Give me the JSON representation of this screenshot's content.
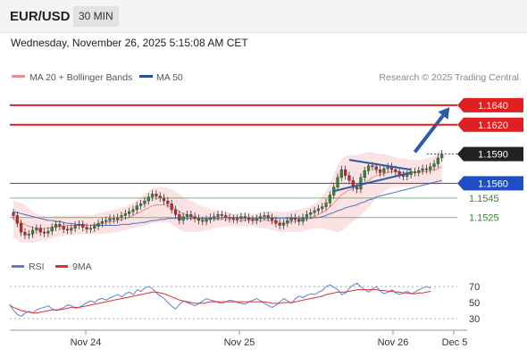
{
  "header": {
    "pair": "EUR/USD",
    "timeframe": "30 MIN",
    "datetime": "Wednesday, November 26, 2025 5:15:08 AM CET"
  },
  "legend": {
    "ma20": "MA 20 + Bollinger Bands",
    "ma50": "MA 50",
    "copyright": "Research © 2025 Trading Central"
  },
  "colors": {
    "resistance": "#e02020",
    "support": "#1e4fc4",
    "support_minor": "#2e8b2e",
    "price": "#222222",
    "bollinger": "#fbe3e3",
    "ma20": "#f08a8a",
    "ma50": "#4a6fd0",
    "arrow": "#2b5ca8",
    "candle_up": "#2e8b2e",
    "candle_down": "#d42020",
    "rsi": "#5b7fd6",
    "rsi_ma": "#e03030"
  },
  "chart_data": [
    {
      "type": "candlestick",
      "x_ticks": [
        "Nov 24",
        "Nov 25",
        "Nov 26",
        "Dec 5"
      ],
      "ylim": [
        1.149,
        1.166
      ],
      "levels": [
        {
          "value": 1.164,
          "label": "1.1640",
          "kind": "resistance"
        },
        {
          "value": 1.162,
          "label": "1.1620",
          "kind": "resistance"
        },
        {
          "value": 1.159,
          "label": "1.1590",
          "kind": "price"
        },
        {
          "value": 1.156,
          "label": "1.1560",
          "kind": "support"
        },
        {
          "value": 1.1545,
          "label": "1.1545",
          "kind": "support_minor"
        },
        {
          "value": 1.1525,
          "label": "1.1525",
          "kind": "support_minor"
        }
      ],
      "close": [
        1.1527,
        1.1519,
        1.151,
        1.1507,
        1.1508,
        1.1512,
        1.1514,
        1.151,
        1.1509,
        1.1511,
        1.1515,
        1.1518,
        1.1516,
        1.1513,
        1.1512,
        1.1514,
        1.1517,
        1.1518,
        1.1515,
        1.1513,
        1.1514,
        1.1516,
        1.1519,
        1.1521,
        1.1522,
        1.1524,
        1.1523,
        1.1525,
        1.1527,
        1.1529,
        1.1531,
        1.1533,
        1.1537,
        1.1539,
        1.1542,
        1.1546,
        1.1549,
        1.1547,
        1.1545,
        1.1542,
        1.1539,
        1.1533,
        1.1528,
        1.1522,
        1.1526,
        1.1528,
        1.1526,
        1.1524,
        1.1522,
        1.1521,
        1.1523,
        1.1525,
        1.1526,
        1.1528,
        1.1527,
        1.1525,
        1.1524,
        1.1523,
        1.1524,
        1.1526,
        1.1525,
        1.1523,
        1.1522,
        1.1524,
        1.1526,
        1.1527,
        1.1525,
        1.1522,
        1.1519,
        1.1517,
        1.1519,
        1.1522,
        1.1525,
        1.1523,
        1.1521,
        1.1525,
        1.1528,
        1.153,
        1.1532,
        1.1534,
        1.1536,
        1.154,
        1.1548,
        1.1556,
        1.1566,
        1.1574,
        1.1568,
        1.1563,
        1.1556,
        1.1554,
        1.1566,
        1.1573,
        1.1578,
        1.1577,
        1.1574,
        1.1571,
        1.1575,
        1.1577,
        1.1574,
        1.1572,
        1.1569,
        1.1567,
        1.1569,
        1.1572,
        1.1571,
        1.1573,
        1.1575,
        1.1574,
        1.1577,
        1.158,
        1.1586,
        1.159
      ],
      "bollinger_upper": [
        1.1542,
        1.1541,
        1.154,
        1.1538,
        1.1534,
        1.1531,
        1.1529,
        1.1528,
        1.1527,
        1.1526,
        1.1526,
        1.1527,
        1.1527,
        1.1527,
        1.1527,
        1.1527,
        1.1527,
        1.1527,
        1.1527,
        1.1527,
        1.1527,
        1.1528,
        1.1529,
        1.153,
        1.1531,
        1.1532,
        1.1533,
        1.1534,
        1.1535,
        1.1536,
        1.1538,
        1.154,
        1.1543,
        1.1546,
        1.1549,
        1.1552,
        1.1555,
        1.1556,
        1.1556,
        1.1556,
        1.1555,
        1.1554,
        1.1552,
        1.1549,
        1.1546,
        1.1544,
        1.1542,
        1.154,
        1.1538,
        1.1536,
        1.1535,
        1.1534,
        1.1533,
        1.1532,
        1.1531,
        1.153,
        1.153,
        1.1529,
        1.1529,
        1.1529,
        1.1529,
        1.1529,
        1.1529,
        1.1529,
        1.153,
        1.1531,
        1.1531,
        1.1531,
        1.1531,
        1.1531,
        1.1531,
        1.1531,
        1.1532,
        1.1533,
        1.1533,
        1.1534,
        1.1535,
        1.1537,
        1.1539,
        1.1542,
        1.1546,
        1.1552,
        1.156,
        1.1569,
        1.1579,
        1.1585,
        1.1588,
        1.1589,
        1.1589,
        1.1589,
        1.159,
        1.1591,
        1.1592,
        1.1592,
        1.1591,
        1.159,
        1.159,
        1.1589,
        1.1588,
        1.1587,
        1.1586,
        1.1585,
        1.1585,
        1.1584,
        1.1584,
        1.1584,
        1.1585,
        1.1586,
        1.1587,
        1.1589,
        1.1592,
        1.1596
      ],
      "bollinger_lower": [
        1.1504,
        1.1502,
        1.15,
        1.1499,
        1.1499,
        1.1499,
        1.15,
        1.1501,
        1.1502,
        1.1503,
        1.1504,
        1.1505,
        1.1506,
        1.1506,
        1.1507,
        1.1507,
        1.1507,
        1.1508,
        1.1508,
        1.1508,
        1.1508,
        1.1508,
        1.1508,
        1.1508,
        1.1509,
        1.1509,
        1.151,
        1.151,
        1.1511,
        1.1512,
        1.1513,
        1.1514,
        1.1515,
        1.1516,
        1.1517,
        1.1518,
        1.1519,
        1.152,
        1.152,
        1.152,
        1.152,
        1.1518,
        1.1515,
        1.1512,
        1.1511,
        1.151,
        1.151,
        1.151,
        1.151,
        1.1511,
        1.1512,
        1.1513,
        1.1514,
        1.1515,
        1.1515,
        1.1516,
        1.1516,
        1.1516,
        1.1516,
        1.1516,
        1.1516,
        1.1516,
        1.1516,
        1.1515,
        1.1514,
        1.1514,
        1.1513,
        1.1512,
        1.1511,
        1.151,
        1.151,
        1.151,
        1.151,
        1.151,
        1.151,
        1.1511,
        1.1512,
        1.1513,
        1.1514,
        1.1514,
        1.1514,
        1.1513,
        1.1512,
        1.1511,
        1.151,
        1.1511,
        1.1514,
        1.1518,
        1.1521,
        1.1524,
        1.1527,
        1.1531,
        1.1535,
        1.154,
        1.1544,
        1.1548,
        1.1551,
        1.1554,
        1.1556,
        1.1557,
        1.1557,
        1.1557,
        1.1557,
        1.1557,
        1.1557,
        1.1558,
        1.1558,
        1.1558,
        1.1559,
        1.1559,
        1.1559,
        1.156
      ],
      "ma20": [
        1.1523,
        1.1521,
        1.152,
        1.1518,
        1.1516,
        1.1515,
        1.1514,
        1.1514,
        1.1514,
        1.1514,
        1.1515,
        1.1516,
        1.1516,
        1.1516,
        1.1517,
        1.1517,
        1.1517,
        1.1517,
        1.1517,
        1.1517,
        1.1517,
        1.1518,
        1.1518,
        1.1519,
        1.152,
        1.1521,
        1.1521,
        1.1522,
        1.1523,
        1.1524,
        1.1525,
        1.1527,
        1.1529,
        1.1531,
        1.1533,
        1.1535,
        1.1537,
        1.1538,
        1.1538,
        1.1538,
        1.1537,
        1.1536,
        1.1534,
        1.1531,
        1.1529,
        1.1527,
        1.1526,
        1.1525,
        1.1524,
        1.1523,
        1.1523,
        1.1523,
        1.1523,
        1.1523,
        1.1523,
        1.1523,
        1.1523,
        1.1523,
        1.1522,
        1.1522,
        1.1522,
        1.1522,
        1.1522,
        1.1522,
        1.1522,
        1.1522,
        1.1522,
        1.1521,
        1.1521,
        1.152,
        1.152,
        1.152,
        1.1521,
        1.1521,
        1.1522,
        1.1522,
        1.1523,
        1.1525,
        1.1526,
        1.1528,
        1.153,
        1.1532,
        1.1536,
        1.154,
        1.1544,
        1.1548,
        1.1551,
        1.1553,
        1.1555,
        1.1556,
        1.1558,
        1.1561,
        1.1563,
        1.1566,
        1.1568,
        1.1569,
        1.157,
        1.1571,
        1.1572,
        1.1572,
        1.1571,
        1.1571,
        1.1571,
        1.1571,
        1.1571,
        1.1571,
        1.1572,
        1.1572,
        1.1573,
        1.1574,
        1.1575,
        1.1577
      ],
      "ma50": [
        1.1531,
        1.153,
        1.1529,
        1.1528,
        1.1527,
        1.1526,
        1.1525,
        1.1524,
        1.1523,
        1.1522,
        1.1522,
        1.1521,
        1.1521,
        1.152,
        1.1519,
        1.1519,
        1.1518,
        1.1518,
        1.1518,
        1.1517,
        1.1517,
        1.1517,
        1.1517,
        1.1517,
        1.1517,
        1.1517,
        1.1517,
        1.1517,
        1.1518,
        1.1518,
        1.1518,
        1.1519,
        1.1519,
        1.152,
        1.152,
        1.1521,
        1.1522,
        1.1522,
        1.1523,
        1.1523,
        1.1524,
        1.1524,
        1.1524,
        1.1524,
        1.1524,
        1.1524,
        1.1524,
        1.1524,
        1.1524,
        1.1524,
        1.1524,
        1.1524,
        1.1524,
        1.1524,
        1.1525,
        1.1525,
        1.1525,
        1.1525,
        1.1525,
        1.1524,
        1.1524,
        1.1524,
        1.1524,
        1.1524,
        1.1524,
        1.1524,
        1.1524,
        1.1524,
        1.1524,
        1.1524,
        1.1524,
        1.1524,
        1.1524,
        1.1524,
        1.1524,
        1.1524,
        1.1524,
        1.1524,
        1.1525,
        1.1525,
        1.1526,
        1.1527,
        1.1529,
        1.153,
        1.1532,
        1.1533,
        1.1535,
        1.1536,
        1.1537,
        1.1538,
        1.154,
        1.1541,
        1.1543,
        1.1544,
        1.1546,
        1.1547,
        1.1548,
        1.1549,
        1.155,
        1.1551,
        1.1552,
        1.1553,
        1.1554,
        1.1555,
        1.1556,
        1.1557,
        1.1558,
        1.1559,
        1.156,
        1.1561,
        1.1562,
        1.1563
      ],
      "triangle": {
        "upper": [
          [
            87,
            1.1584
          ],
          [
            103,
            1.1574
          ]
        ],
        "lower": [
          [
            83,
            1.1552
          ],
          [
            103,
            1.1571
          ]
        ]
      },
      "arrow": {
        "from": [
          104,
          1.1592
        ],
        "to": [
          113,
          1.1638
        ]
      }
    },
    {
      "type": "line",
      "legend": [
        "RSI",
        "9MA"
      ],
      "y_ticks": [
        70,
        50,
        30
      ],
      "ylim": [
        20,
        80
      ],
      "rsi": [
        48,
        40,
        35,
        33,
        37,
        39,
        37,
        41,
        43,
        44,
        46,
        42,
        40,
        42,
        44,
        47,
        46,
        43,
        44,
        47,
        50,
        52,
        50,
        54,
        55,
        53,
        56,
        58,
        60,
        57,
        61,
        63,
        60,
        66,
        64,
        68,
        70,
        67,
        62,
        58,
        55,
        50,
        45,
        42,
        48,
        52,
        50,
        48,
        46,
        49,
        52,
        55,
        53,
        52,
        50,
        49,
        51,
        53,
        52,
        50,
        49,
        48,
        51,
        53,
        55,
        52,
        49,
        46,
        44,
        47,
        51,
        55,
        52,
        49,
        55,
        58,
        56,
        59,
        61,
        60,
        63,
        65,
        70,
        72,
        69,
        66,
        60,
        62,
        68,
        72,
        74,
        69,
        66,
        63,
        67,
        70,
        64,
        61,
        63,
        66,
        62,
        60,
        62,
        64,
        61,
        63,
        66,
        68,
        70,
        68
      ],
      "rsi_ma": [
        46,
        44,
        42,
        40,
        39,
        38,
        37,
        37,
        38,
        39,
        40,
        41,
        41,
        41,
        42,
        43,
        44,
        44,
        44,
        45,
        46,
        47,
        48,
        49,
        50,
        51,
        52,
        53,
        54,
        55,
        56,
        57,
        58,
        59,
        60,
        61,
        62,
        63,
        63,
        62,
        61,
        59,
        57,
        55,
        53,
        52,
        51,
        50,
        49,
        49,
        49,
        50,
        51,
        51,
        51,
        51,
        51,
        51,
        51,
        51,
        51,
        51,
        51,
        51,
        51,
        51,
        51,
        50,
        49,
        49,
        49,
        50,
        50,
        50,
        51,
        52,
        53,
        54,
        55,
        56,
        57,
        58,
        60,
        61,
        62,
        63,
        63,
        63,
        64,
        65,
        66,
        66,
        66,
        66,
        66,
        66,
        65,
        65,
        64,
        64,
        63,
        63,
        62,
        62,
        61,
        61,
        62,
        62,
        63,
        64
      ]
    }
  ]
}
